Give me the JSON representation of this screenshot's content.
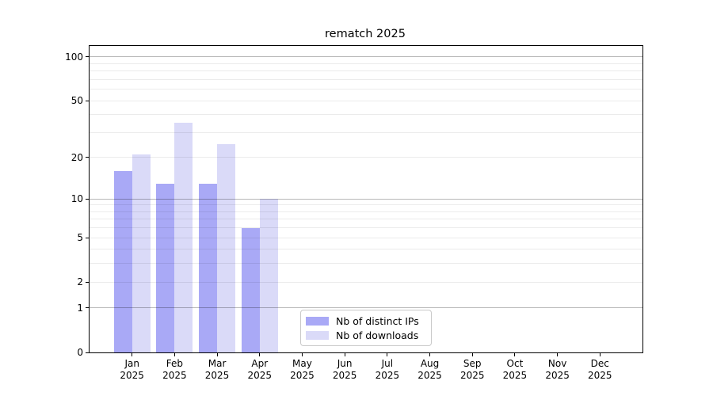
{
  "chart_data": {
    "type": "bar",
    "title": "rematch 2025",
    "categories": [
      "Jan 2025",
      "Feb 2025",
      "Mar 2025",
      "Apr 2025",
      "May 2025",
      "Jun 2025",
      "Jul 2025",
      "Aug 2025",
      "Sep 2025",
      "Oct 2025",
      "Nov 2025",
      "Dec 2025"
    ],
    "series": [
      {
        "name": "Nb of distinct IPs",
        "color": "#a9a9f6",
        "values": [
          16,
          13,
          13,
          6,
          0,
          0,
          0,
          0,
          0,
          0,
          0,
          0
        ]
      },
      {
        "name": "Nb of downloads",
        "color": "#dadaf8",
        "values": [
          21,
          35,
          25,
          10,
          0,
          0,
          0,
          0,
          0,
          0,
          0,
          0
        ]
      }
    ],
    "xlabel": "",
    "ylabel": "",
    "yscale": "log1p",
    "ylim": [
      0,
      119
    ],
    "yticks": [
      0,
      1,
      2,
      5,
      10,
      20,
      50,
      100
    ],
    "grid": {
      "major": [
        1,
        10,
        100
      ],
      "minor": [
        2,
        3,
        4,
        5,
        6,
        7,
        8,
        9,
        20,
        30,
        40,
        50,
        60,
        70,
        80,
        90
      ]
    },
    "legend_position": "lower center",
    "background": "#ffffff"
  }
}
